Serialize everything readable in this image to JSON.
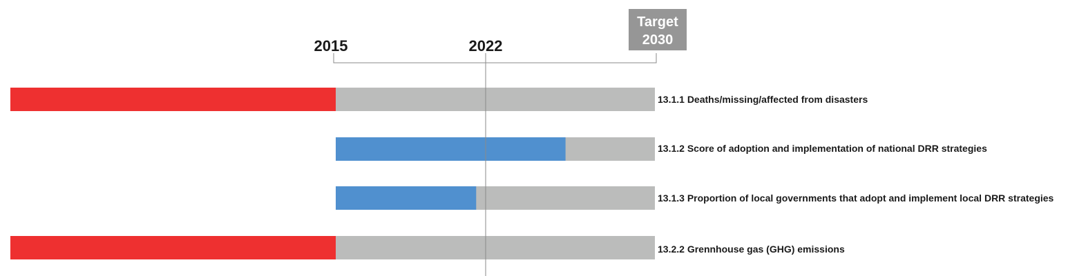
{
  "chart_data": {
    "type": "bar",
    "orientation": "horizontal",
    "timeline": {
      "start_label": "2015",
      "current_label": "2022",
      "target_label_line1": "Target",
      "target_label_line2": "2030"
    },
    "scale": {
      "regress_min": -1,
      "target": 1
    },
    "rows": [
      {
        "label": "13.1.1 Deaths/missing/affected from disasters",
        "progress": -1,
        "status": "regress"
      },
      {
        "label": "13.1.2 Score of adoption and implementation of national DRR strategies",
        "progress": 0.72,
        "status": "progress"
      },
      {
        "label": "13.1.3 Proportion of local governments that adopt and implement local DRR strategies",
        "progress": 0.44,
        "status": "progress"
      },
      {
        "label": "13.2.2 Grennhouse gas (GHG) emissions",
        "progress": -1,
        "status": "regress"
      }
    ],
    "colors": {
      "progress": "#5090cf",
      "regress": "#ee3030",
      "remaining": "#bbbcbb",
      "target_box": "#969696",
      "axis": "#8a8a8a"
    }
  }
}
